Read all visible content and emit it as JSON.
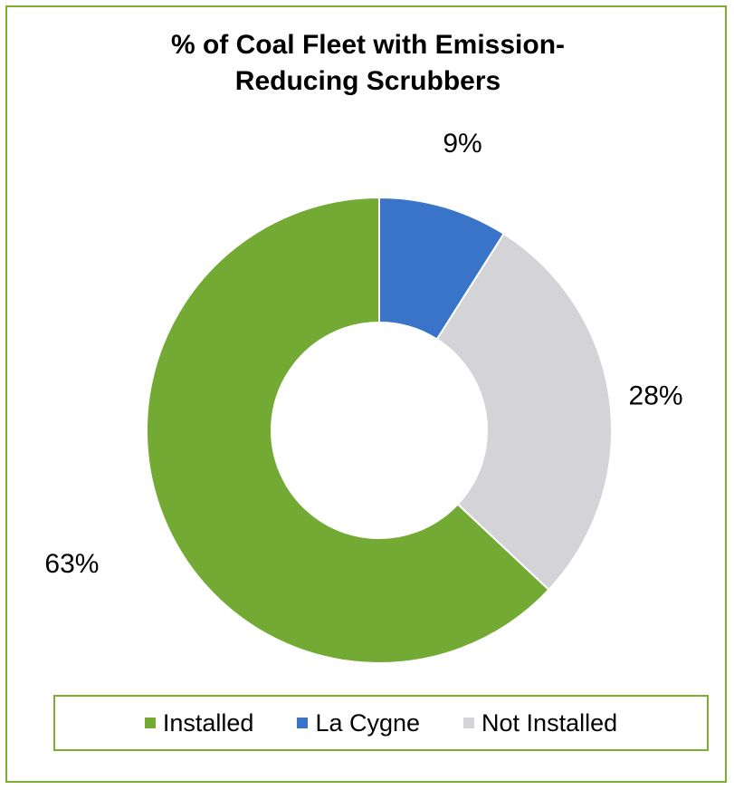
{
  "chart_data": {
    "type": "pie",
    "variant": "donut",
    "title_lines": [
      "% of Coal Fleet with Emission-",
      "Reducing Scrubbers"
    ],
    "categories": [
      "Installed",
      "La Cygne",
      "Not Installed"
    ],
    "values": [
      63,
      9,
      28
    ],
    "data_labels": [
      "63%",
      "9%",
      "28%"
    ],
    "colors": [
      "#72aa34",
      "#3a74c8",
      "#d4d4d8"
    ],
    "legend_position": "bottom"
  }
}
